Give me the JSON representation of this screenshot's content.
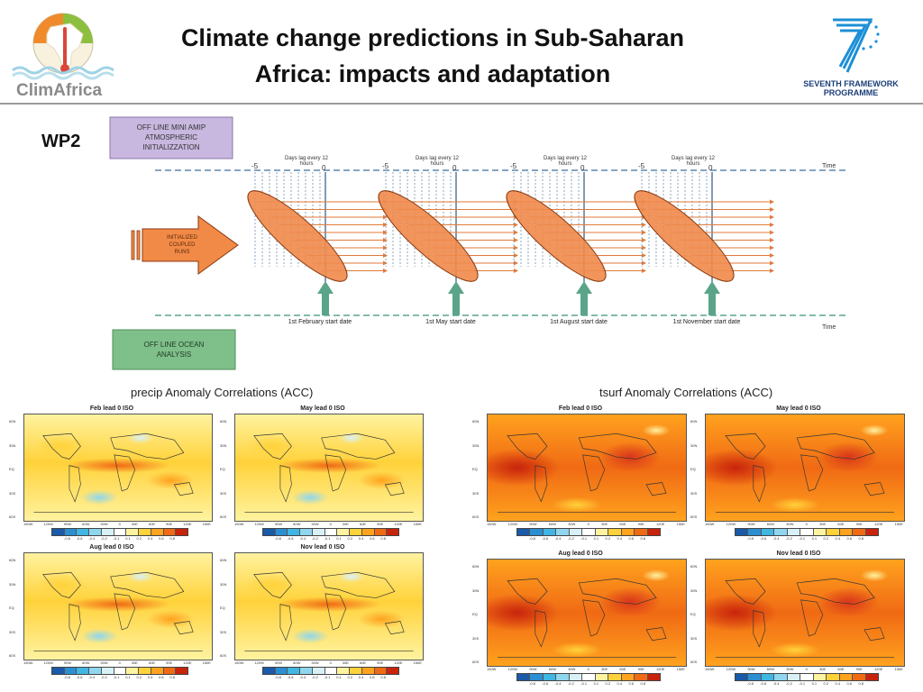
{
  "header": {
    "title_line1": "Climate change predictions in Sub-Saharan",
    "title_line2": "Africa: impacts and adaptation",
    "left_logo_text": "ClimAfrica",
    "right_logo_line1": "SEVENTH FRAMEWORK",
    "right_logo_line2": "PROGRAMME"
  },
  "section_label": "WP2",
  "diagram": {
    "top_box": "OFF LINE MINI AMIP ATMOSPHERIC INITIALIZZATION",
    "top_box_lines": [
      "OFF LINE MINI AMIP",
      "ATMOSPHERIC",
      "INITIALIZZATION"
    ],
    "arrow_label_lines": [
      "INITIALIZED",
      "COUPLED",
      "RUNS"
    ],
    "bottom_box_lines": [
      "OFF LINE OCEAN",
      "ANALYSIS"
    ],
    "time_label": "Time",
    "lag_header_lines": [
      "Days lag every 12",
      "hours"
    ],
    "tick_start": "-5",
    "tick_end": "0",
    "start_dates": [
      "1st February start date",
      "1st May start date",
      "1st August start date",
      "1st November start date"
    ],
    "colors": {
      "ellipse": "#f08a4b",
      "ellipse_stroke": "#8a3a10",
      "arrow_up": "#5aa58a",
      "top_box": "#c8b7df",
      "bottom_box": "#7fbf8a",
      "orange_arrow": "#f28a47"
    }
  },
  "maps": {
    "precip_title": "precip Anomaly Correlations (ACC)",
    "tsurf_title": "tsurf Anomaly Correlations (ACC)",
    "panel_titles": [
      "Feb lead 0 ISO",
      "May lead 0 ISO",
      "Aug lead 0 ISO",
      "Nov lead 0 ISO"
    ],
    "lat_labels": [
      "60N",
      "30N",
      "EQ",
      "30S",
      "60S"
    ],
    "lon_labels": [
      "150W",
      "120W",
      "90W",
      "60W",
      "30W",
      "0",
      "30E",
      "60E",
      "90E",
      "120E",
      "150E"
    ],
    "colorbar_labels": [
      "-0.8",
      "-0.6",
      "-0.4",
      "-0.2",
      "-0.1",
      "0.1",
      "0.2",
      "0.4",
      "0.6",
      "0.8"
    ],
    "colorbar_colors": [
      "#1a5aa8",
      "#2b8fd1",
      "#3fb6e3",
      "#8fd6ef",
      "#d8f1f7",
      "#ffffff",
      "#fff3a0",
      "#ffd23a",
      "#ffa21e",
      "#f06a14",
      "#c8240c"
    ]
  }
}
